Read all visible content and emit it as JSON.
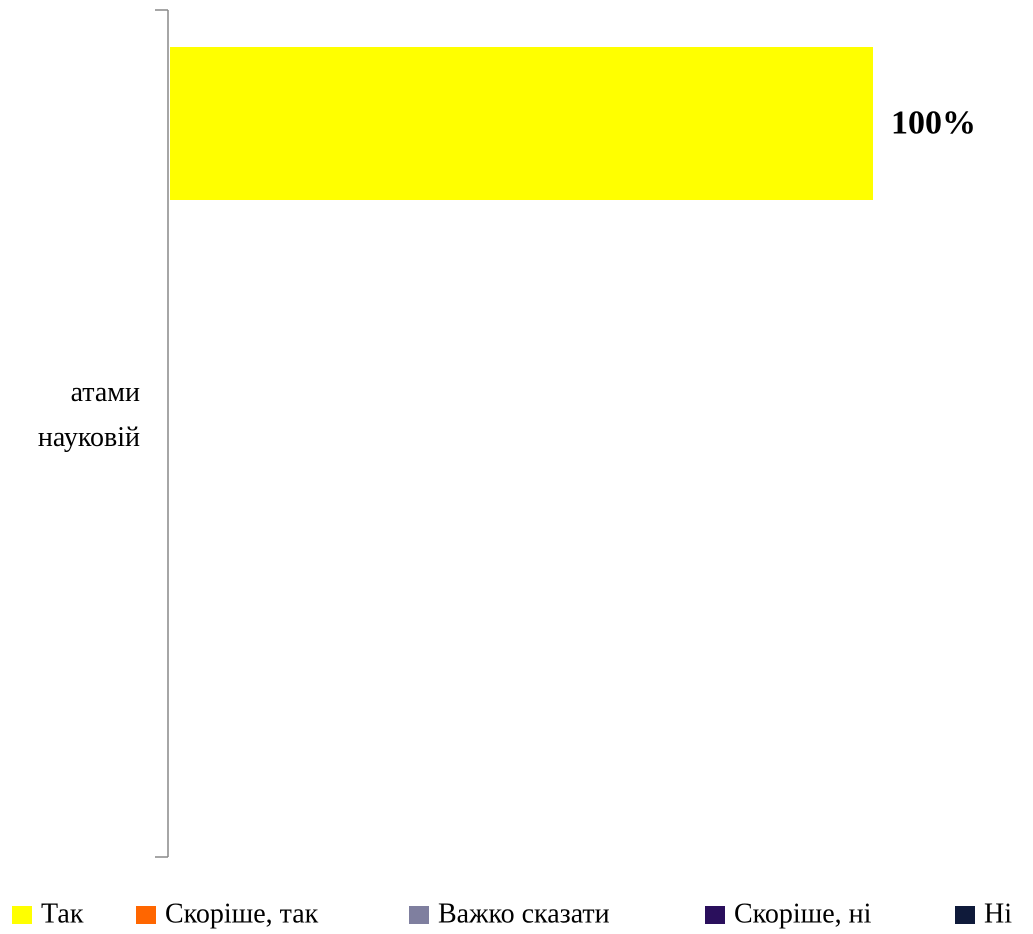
{
  "chart_data": {
    "type": "bar",
    "orientation": "horizontal",
    "categories": [
      "атами\nнауковій"
    ],
    "series": [
      {
        "name": "Так",
        "color": "#ffff00",
        "values": [
          100
        ],
        "value_labels": [
          "100%"
        ]
      },
      {
        "name": "Скоріше, так",
        "color": "#ff6600",
        "values": [
          0
        ]
      },
      {
        "name": "Важко сказати",
        "color": "#7f7f9f",
        "values": [
          0
        ]
      },
      {
        "name": "Скоріше, ні",
        "color": "#2a0f5c",
        "values": [
          0
        ]
      },
      {
        "name": "Ні",
        "color": "#0f1a3a",
        "values": [
          0
        ]
      }
    ],
    "xlim": [
      0,
      100
    ],
    "legend": "bottom"
  }
}
